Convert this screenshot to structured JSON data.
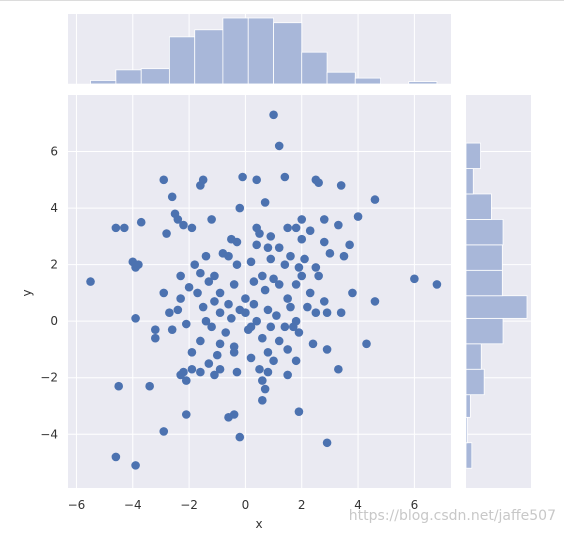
{
  "chart_data": {
    "type": "scatter",
    "title": "",
    "xlabel": "x",
    "ylabel": "y",
    "xlim": [
      -6.3,
      7.3
    ],
    "ylim": [
      -5.9,
      8.0
    ],
    "xticks": [
      -6,
      -4,
      -2,
      0,
      2,
      4,
      6
    ],
    "yticks": [
      -4,
      -2,
      0,
      2,
      4,
      6
    ],
    "grid": true,
    "background": "#eaeaf2",
    "point_color": "#4c72b0",
    "hist_color": "#a8b7d9",
    "points": [
      [
        1.0,
        7.3
      ],
      [
        1.2,
        6.2
      ],
      [
        -2.9,
        5.0
      ],
      [
        -1.5,
        5.0
      ],
      [
        -0.1,
        5.1
      ],
      [
        0.4,
        5.0
      ],
      [
        1.4,
        5.1
      ],
      [
        2.5,
        5.0
      ],
      [
        2.6,
        4.9
      ],
      [
        3.4,
        4.8
      ],
      [
        -1.6,
        4.8
      ],
      [
        -2.6,
        4.4
      ],
      [
        4.6,
        4.3
      ],
      [
        -0.2,
        4.0
      ],
      [
        -2.5,
        3.8
      ],
      [
        -2.4,
        3.6
      ],
      [
        -1.2,
        3.6
      ],
      [
        0.7,
        4.2
      ],
      [
        2.0,
        3.6
      ],
      [
        2.8,
        3.6
      ],
      [
        4.0,
        3.7
      ],
      [
        -3.7,
        3.5
      ],
      [
        -2.2,
        3.4
      ],
      [
        -1.9,
        3.3
      ],
      [
        -4.6,
        3.3
      ],
      [
        -4.3,
        3.3
      ],
      [
        0.4,
        3.3
      ],
      [
        1.5,
        3.3
      ],
      [
        1.8,
        3.3
      ],
      [
        2.3,
        3.2
      ],
      [
        3.3,
        3.4
      ],
      [
        -2.8,
        3.1
      ],
      [
        0.5,
        3.1
      ],
      [
        0.9,
        3.0
      ],
      [
        -0.3,
        2.8
      ],
      [
        -0.5,
        2.9
      ],
      [
        2.0,
        2.9
      ],
      [
        2.8,
        2.8
      ],
      [
        3.7,
        2.7
      ],
      [
        0.4,
        2.7
      ],
      [
        0.8,
        2.6
      ],
      [
        1.2,
        2.6
      ],
      [
        -0.8,
        2.4
      ],
      [
        -1.4,
        2.3
      ],
      [
        -0.6,
        2.3
      ],
      [
        1.6,
        2.3
      ],
      [
        2.1,
        2.2
      ],
      [
        3.0,
        2.4
      ],
      [
        3.5,
        2.3
      ],
      [
        -4.0,
        2.1
      ],
      [
        -3.8,
        2.0
      ],
      [
        -3.9,
        1.9
      ],
      [
        -1.8,
        2.0
      ],
      [
        -0.3,
        2.0
      ],
      [
        0.2,
        2.1
      ],
      [
        0.9,
        2.2
      ],
      [
        1.4,
        2.0
      ],
      [
        1.9,
        1.9
      ],
      [
        2.5,
        1.9
      ],
      [
        -2.3,
        1.6
      ],
      [
        -1.6,
        1.7
      ],
      [
        -1.1,
        1.6
      ],
      [
        0.6,
        1.6
      ],
      [
        1.0,
        1.5
      ],
      [
        2.0,
        1.6
      ],
      [
        2.6,
        1.6
      ],
      [
        -1.3,
        1.4
      ],
      [
        -0.4,
        1.3
      ],
      [
        0.3,
        1.4
      ],
      [
        1.2,
        1.3
      ],
      [
        1.8,
        1.3
      ],
      [
        -5.5,
        1.4
      ],
      [
        6.0,
        1.5
      ],
      [
        6.8,
        1.3
      ],
      [
        -2.0,
        1.2
      ],
      [
        0.7,
        1.1
      ],
      [
        -1.7,
        1.0
      ],
      [
        -2.9,
        1.0
      ],
      [
        -0.9,
        1.0
      ],
      [
        2.3,
        1.0
      ],
      [
        3.8,
        1.0
      ],
      [
        -2.3,
        0.8
      ],
      [
        -1.1,
        0.7
      ],
      [
        0.0,
        0.8
      ],
      [
        1.5,
        0.8
      ],
      [
        -0.6,
        0.6
      ],
      [
        0.3,
        0.6
      ],
      [
        2.8,
        0.7
      ],
      [
        4.6,
        0.7
      ],
      [
        -1.5,
        0.5
      ],
      [
        -0.2,
        0.4
      ],
      [
        0.8,
        0.4
      ],
      [
        1.6,
        0.5
      ],
      [
        2.2,
        0.5
      ],
      [
        -2.7,
        0.3
      ],
      [
        -2.4,
        0.4
      ],
      [
        -0.9,
        0.3
      ],
      [
        0.0,
        0.3
      ],
      [
        1.1,
        0.2
      ],
      [
        2.5,
        0.3
      ],
      [
        2.9,
        0.3
      ],
      [
        3.4,
        0.3
      ],
      [
        -3.9,
        0.1
      ],
      [
        -1.4,
        0.0
      ],
      [
        -0.5,
        0.1
      ],
      [
        0.4,
        0.0
      ],
      [
        1.8,
        0.0
      ],
      [
        -2.1,
        -0.1
      ],
      [
        -1.2,
        -0.2
      ],
      [
        0.2,
        -0.2
      ],
      [
        0.9,
        -0.2
      ],
      [
        1.4,
        -0.2
      ],
      [
        1.7,
        -0.2
      ],
      [
        -3.2,
        -0.3
      ],
      [
        -2.6,
        -0.3
      ],
      [
        -0.7,
        -0.4
      ],
      [
        0.1,
        -0.3
      ],
      [
        1.9,
        -0.4
      ],
      [
        -3.2,
        -0.6
      ],
      [
        -1.6,
        -0.7
      ],
      [
        0.6,
        -0.6
      ],
      [
        1.2,
        -0.7
      ],
      [
        -0.9,
        -0.8
      ],
      [
        2.4,
        -0.8
      ],
      [
        4.3,
        -0.8
      ],
      [
        -0.4,
        -0.9
      ],
      [
        1.5,
        -1.0
      ],
      [
        -1.9,
        -1.1
      ],
      [
        -0.4,
        -1.1
      ],
      [
        0.8,
        -1.1
      ],
      [
        2.9,
        -1.0
      ],
      [
        -1.0,
        -1.2
      ],
      [
        0.2,
        -1.3
      ],
      [
        -1.3,
        -1.5
      ],
      [
        1.0,
        -1.4
      ],
      [
        1.8,
        -1.4
      ],
      [
        -1.9,
        -1.7
      ],
      [
        -1.6,
        -1.8
      ],
      [
        -2.2,
        -1.8
      ],
      [
        -0.9,
        -1.7
      ],
      [
        0.5,
        -1.7
      ],
      [
        0.8,
        -1.8
      ],
      [
        3.3,
        -1.7
      ],
      [
        -2.3,
        -1.9
      ],
      [
        -1.1,
        -1.9
      ],
      [
        -0.3,
        -1.8
      ],
      [
        1.5,
        -1.9
      ],
      [
        -2.1,
        -2.1
      ],
      [
        0.6,
        -2.1
      ],
      [
        -4.5,
        -2.3
      ],
      [
        -3.4,
        -2.3
      ],
      [
        0.7,
        -2.4
      ],
      [
        0.6,
        -2.8
      ],
      [
        -2.1,
        -3.3
      ],
      [
        -0.6,
        -3.4
      ],
      [
        -0.4,
        -3.3
      ],
      [
        1.9,
        -3.2
      ],
      [
        -2.9,
        -3.9
      ],
      [
        -0.2,
        -4.1
      ],
      [
        2.9,
        -4.3
      ],
      [
        -4.6,
        -4.8
      ],
      [
        -3.9,
        -5.1
      ]
    ],
    "marginal_x": {
      "bins": [
        -5.5,
        -4.6,
        -3.7,
        -2.7,
        -1.8,
        -0.8,
        0.1,
        1.0,
        2.0,
        2.9,
        3.9,
        4.8,
        5.8,
        6.8
      ],
      "counts": [
        3,
        12,
        13,
        40,
        46,
        56,
        56,
        52,
        27,
        10,
        5,
        0,
        2
      ]
    },
    "marginal_y": {
      "bins": [
        -5.2,
        -4.3,
        -3.4,
        -2.6,
        -1.7,
        -0.8,
        0.1,
        0.9,
        1.8,
        2.7,
        3.6,
        4.5,
        5.4,
        6.3,
        7.3
      ],
      "counts": [
        8,
        2,
        6,
        25,
        21,
        51,
        84,
        50,
        50,
        51,
        35,
        10,
        20,
        0,
        0
      ]
    }
  },
  "watermark": "https://blog.csdn.net/jaffe507"
}
